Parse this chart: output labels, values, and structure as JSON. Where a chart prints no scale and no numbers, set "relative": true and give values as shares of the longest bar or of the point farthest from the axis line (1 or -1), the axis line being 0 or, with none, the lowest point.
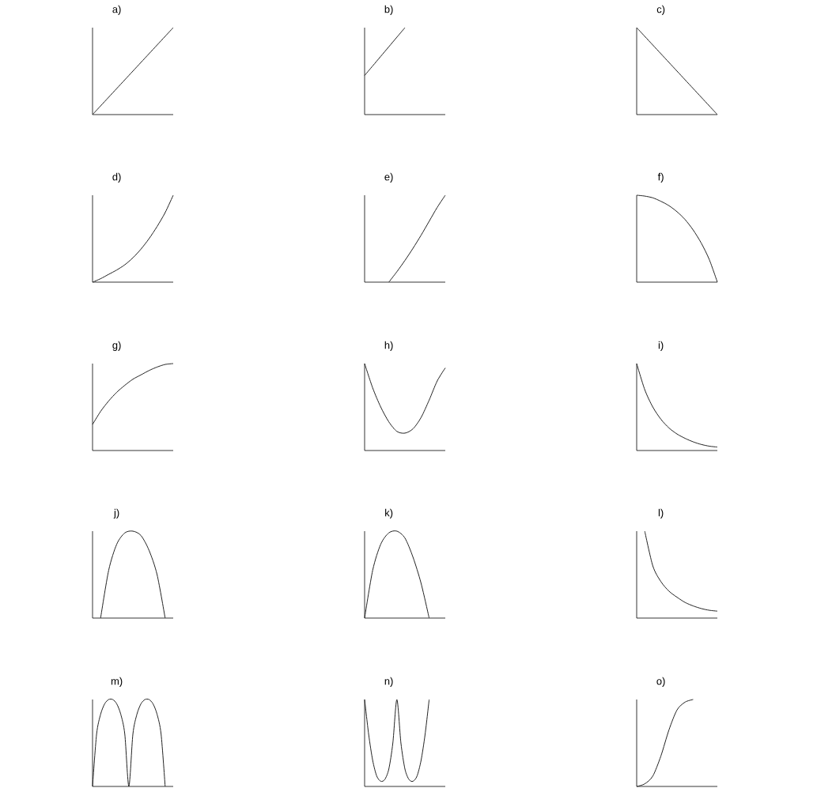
{
  "chart_data": [
    {
      "type": "line",
      "title": "a)",
      "relative": true,
      "color": "#222222",
      "categories": [
        null,
        null,
        null,
        null,
        null,
        null,
        null,
        null,
        null,
        null,
        null
      ],
      "values": [
        0,
        0.1,
        0.2,
        0.3,
        0.4,
        0.5,
        0.6,
        0.7,
        0.8,
        0.9,
        1
      ]
    },
    {
      "type": "line",
      "title": "b)",
      "relative": true,
      "color": "#222222",
      "categories": [
        null,
        null,
        null,
        null,
        null,
        null,
        null,
        null,
        null,
        null,
        null
      ],
      "values": [
        0.45,
        0.56,
        0.67,
        0.78,
        0.89,
        1,
        null,
        null,
        null,
        null,
        null
      ]
    },
    {
      "type": "line",
      "title": "c)",
      "relative": true,
      "color": "#222222",
      "categories": [
        null,
        null,
        null,
        null,
        null,
        null,
        null,
        null,
        null,
        null,
        null
      ],
      "values": [
        1,
        0.9,
        0.8,
        0.7,
        0.6,
        0.5,
        0.4,
        0.3,
        0.2,
        0.1,
        0
      ]
    },
    {
      "type": "line",
      "title": "d)",
      "relative": true,
      "color": "#222222",
      "categories": [
        null,
        null,
        null,
        null,
        null,
        null,
        null,
        null,
        null,
        null,
        null
      ],
      "values": [
        0,
        0.04,
        0.09,
        0.14,
        0.2,
        0.28,
        0.38,
        0.5,
        0.64,
        0.8,
        1
      ]
    },
    {
      "type": "line",
      "title": "e)",
      "relative": true,
      "color": "#222222",
      "categories": [
        null,
        null,
        null,
        null,
        null,
        null,
        null,
        null,
        null,
        null,
        null
      ],
      "values": [
        null,
        null,
        null,
        0,
        0.12,
        0.25,
        0.39,
        0.54,
        0.7,
        0.86,
        1
      ]
    },
    {
      "type": "line",
      "title": "f)",
      "relative": true,
      "color": "#222222",
      "categories": [
        null,
        null,
        null,
        null,
        null,
        null,
        null,
        null,
        null,
        null,
        null
      ],
      "values": [
        1,
        0.99,
        0.97,
        0.93,
        0.88,
        0.81,
        0.72,
        0.6,
        0.45,
        0.26,
        0
      ]
    },
    {
      "type": "line",
      "title": "g)",
      "relative": true,
      "color": "#222222",
      "categories": [
        null,
        null,
        null,
        null,
        null,
        null,
        null,
        null,
        null,
        null,
        null
      ],
      "values": [
        0.3,
        0.45,
        0.57,
        0.67,
        0.75,
        0.82,
        0.87,
        0.92,
        0.96,
        0.99,
        1
      ]
    },
    {
      "type": "line",
      "title": "h)",
      "relative": true,
      "color": "#222222",
      "categories": [
        null,
        null,
        null,
        null,
        null,
        null,
        null,
        null,
        null,
        null,
        null
      ],
      "values": [
        1,
        0.72,
        0.5,
        0.33,
        0.22,
        0.2,
        0.25,
        0.38,
        0.58,
        0.8,
        0.95
      ]
    },
    {
      "type": "line",
      "title": "i)",
      "relative": true,
      "color": "#222222",
      "categories": [
        null,
        null,
        null,
        null,
        null,
        null,
        null,
        null,
        null,
        null,
        null
      ],
      "values": [
        1,
        0.7,
        0.5,
        0.36,
        0.26,
        0.19,
        0.14,
        0.1,
        0.07,
        0.05,
        0.04
      ]
    },
    {
      "type": "line",
      "title": "j)",
      "relative": true,
      "color": "#222222",
      "categories": [
        null,
        null,
        null,
        null,
        null,
        null,
        null,
        null,
        null,
        null,
        null
      ],
      "values": [
        null,
        0,
        0.55,
        0.85,
        0.98,
        1,
        0.95,
        0.78,
        0.5,
        0,
        null
      ]
    },
    {
      "type": "line",
      "title": "k)",
      "relative": true,
      "color": "#222222",
      "categories": [
        null,
        null,
        null,
        null,
        null,
        null,
        null,
        null,
        null,
        null,
        null
      ],
      "values": [
        0,
        0.55,
        0.85,
        0.98,
        1,
        0.92,
        0.7,
        0.4,
        0,
        null,
        null
      ]
    },
    {
      "type": "line",
      "title": "l)",
      "relative": true,
      "color": "#222222",
      "categories": [
        null,
        null,
        null,
        null,
        null,
        null,
        null,
        null,
        null,
        null,
        null
      ],
      "values": [
        null,
        1,
        0.6,
        0.42,
        0.31,
        0.24,
        0.18,
        0.14,
        0.11,
        0.09,
        0.08
      ]
    },
    {
      "type": "line",
      "title": "m)",
      "relative": true,
      "color": "#222222",
      "categories": [
        null,
        null,
        null,
        null,
        null,
        null,
        null,
        null,
        null,
        null,
        null,
        null,
        null,
        null,
        null,
        null,
        null,
        null,
        null,
        null,
        null
      ],
      "values": [
        0,
        0.6,
        0.83,
        0.95,
        1,
        1,
        0.95,
        0.83,
        0.6,
        0,
        0.6,
        0.83,
        0.95,
        1,
        1,
        0.95,
        0.83,
        0.6,
        0,
        null,
        null
      ]
    },
    {
      "type": "line",
      "title": "n)",
      "relative": true,
      "color": "#222222",
      "categories": [
        null,
        null,
        null,
        null,
        null,
        null,
        null,
        null,
        null,
        null,
        null,
        null,
        null,
        null,
        null,
        null,
        null,
        null,
        null,
        null,
        null
      ],
      "values": [
        1,
        0.6,
        0.3,
        0.12,
        0.06,
        0.08,
        0.2,
        0.5,
        1,
        0.5,
        0.2,
        0.08,
        0.06,
        0.12,
        0.3,
        0.6,
        1,
        null,
        null,
        null,
        null
      ]
    },
    {
      "type": "line",
      "title": "o)",
      "relative": true,
      "color": "#222222",
      "categories": [
        null,
        null,
        null,
        null,
        null,
        null,
        null,
        null,
        null,
        null,
        null
      ],
      "values": [
        0,
        0.03,
        0.12,
        0.35,
        0.65,
        0.88,
        0.97,
        1,
        null,
        null,
        null
      ]
    }
  ]
}
